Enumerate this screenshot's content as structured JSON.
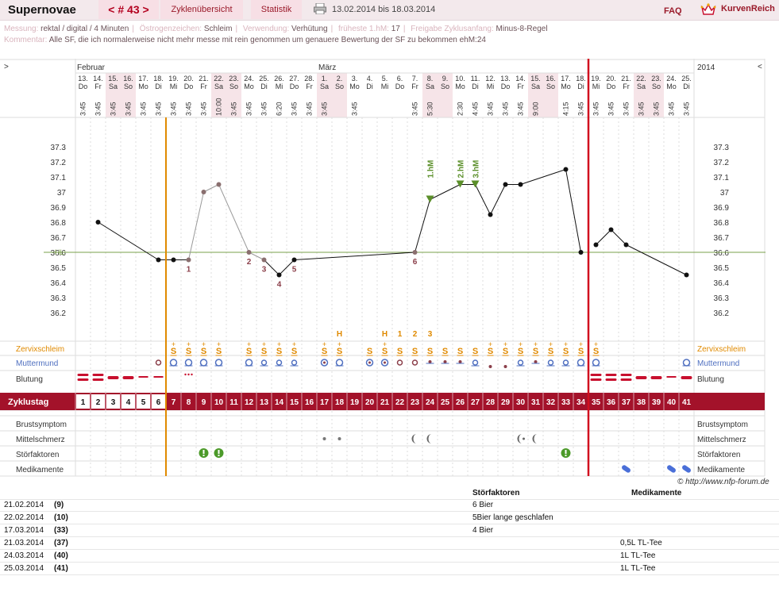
{
  "header": {
    "title": "Supernovae",
    "cycle": "< # 43 >",
    "nav": [
      "Zyklenübersicht",
      "Statistik"
    ],
    "range": "13.02.2014 bis 18.03.2014",
    "faq": "FAQ",
    "brand": "KurvenReich"
  },
  "meta": {
    "messung_label": "Messung:",
    "messung": "rektal / digital / 4 Minuten",
    "oestrogen_label": "Östrogenzeichen:",
    "oestrogen": "Schleim",
    "verwendung_label": "Verwendung:",
    "verwendung": "Verhütung",
    "hm_label": "früheste 1.hM:",
    "hm": "17",
    "freigabe_label": "Freigabe Zyklusanfang:",
    "freigabe": "Minus-8-Regel",
    "kommentar_label": "Kommentar:",
    "kommentar": "Alle SF, die ich normalerweise nicht mehr messe mit rein genommen um genauere Bewertung der SF zu bekommen ehM:24"
  },
  "chart_data": {
    "type": "line",
    "months": {
      "left_arrow": ">",
      "right_arrow": "<",
      "first": "Februar",
      "second": "März",
      "year": "2014"
    },
    "days": [
      {
        "d": "13.",
        "w": "Do",
        "t": "3:45"
      },
      {
        "d": "14.",
        "w": "Fr",
        "t": "3:45"
      },
      {
        "d": "15.",
        "w": "Sa",
        "t": "3:45"
      },
      {
        "d": "16.",
        "w": "So",
        "t": "3:45"
      },
      {
        "d": "17.",
        "w": "Mo",
        "t": "3:45"
      },
      {
        "d": "18.",
        "w": "Di",
        "t": "3:45"
      },
      {
        "d": "19.",
        "w": "Mi",
        "t": "3:45"
      },
      {
        "d": "20.",
        "w": "Do",
        "t": "3:45"
      },
      {
        "d": "21.",
        "w": "Fr",
        "t": "3:45"
      },
      {
        "d": "22.",
        "w": "Sa",
        "t": "10:00"
      },
      {
        "d": "23.",
        "w": "So",
        "t": "3:45"
      },
      {
        "d": "24.",
        "w": "Mo",
        "t": "3:45"
      },
      {
        "d": "25.",
        "w": "Di",
        "t": "3:45"
      },
      {
        "d": "26.",
        "w": "Mi",
        "t": "6:20"
      },
      {
        "d": "27.",
        "w": "Do",
        "t": "3:45"
      },
      {
        "d": "28.",
        "w": "Fr",
        "t": "3:45"
      },
      {
        "d": "1.",
        "w": "Sa",
        "t": "3:45"
      },
      {
        "d": "2.",
        "w": "So",
        "t": ""
      },
      {
        "d": "3.",
        "w": "Mo",
        "t": "3:45"
      },
      {
        "d": "4.",
        "w": "Di",
        "t": ""
      },
      {
        "d": "5.",
        "w": "Mi",
        "t": ""
      },
      {
        "d": "6.",
        "w": "Do",
        "t": ""
      },
      {
        "d": "7.",
        "w": "Fr",
        "t": "3:45"
      },
      {
        "d": "8.",
        "w": "Sa",
        "t": "5:30"
      },
      {
        "d": "9.",
        "w": "So",
        "t": ""
      },
      {
        "d": "10.",
        "w": "Mo",
        "t": "2:30"
      },
      {
        "d": "11.",
        "w": "Di",
        "t": "4:45"
      },
      {
        "d": "12.",
        "w": "Mi",
        "t": "3:45"
      },
      {
        "d": "13.",
        "w": "Do",
        "t": "3:45"
      },
      {
        "d": "14.",
        "w": "Fr",
        "t": "3:45"
      },
      {
        "d": "15.",
        "w": "Sa",
        "t": "9:00"
      },
      {
        "d": "16.",
        "w": "So",
        "t": ""
      },
      {
        "d": "17.",
        "w": "Mo",
        "t": "4:15"
      },
      {
        "d": "18.",
        "w": "Di",
        "t": "3:45"
      },
      {
        "d": "19.",
        "w": "Mi",
        "t": "3:45"
      },
      {
        "d": "20.",
        "w": "Do",
        "t": "3:45"
      },
      {
        "d": "21.",
        "w": "Fr",
        "t": "3:45"
      },
      {
        "d": "22.",
        "w": "Sa",
        "t": "3:45"
      },
      {
        "d": "23.",
        "w": "So",
        "t": "3:45"
      },
      {
        "d": "24.",
        "w": "Mo",
        "t": "3:45"
      },
      {
        "d": "25.",
        "w": "Di",
        "t": "3:45"
      }
    ],
    "weekend_days": [
      3,
      4,
      10,
      11,
      17,
      18,
      24,
      25,
      31,
      32,
      38,
      39
    ],
    "y_ticks": [
      "37.3",
      "37.2",
      "37.1",
      "37",
      "36.9",
      "36.8",
      "36.7",
      "36.6",
      "36.5",
      "36.4",
      "36.3",
      "36.2"
    ],
    "ylim": [
      36.1,
      37.4
    ],
    "hl_label": "HL:",
    "hl_value": 36.6,
    "series": [
      {
        "values": [
          {
            "c": 2,
            "y": 36.8
          },
          {
            "c": 6,
            "y": 36.55
          },
          {
            "c": 7,
            "y": 36.55
          },
          {
            "c": 8,
            "y": 36.55,
            "s": "x"
          },
          {
            "c": 9,
            "y": 37.0,
            "s": "x"
          },
          {
            "c": 10,
            "y": 37.05,
            "s": "x"
          },
          {
            "c": 12,
            "y": 36.6,
            "s": "x"
          },
          {
            "c": 13,
            "y": 36.55,
            "s": "x"
          },
          {
            "c": 14,
            "y": 36.45
          },
          {
            "c": 15,
            "y": 36.55
          },
          {
            "c": 23,
            "y": 36.6,
            "s": "x"
          },
          {
            "c": 24,
            "y": 36.95,
            "s": "t"
          },
          {
            "c": 26,
            "y": 37.05,
            "s": "t"
          },
          {
            "c": 27,
            "y": 37.05,
            "s": "t"
          },
          {
            "c": 28,
            "y": 36.85
          },
          {
            "c": 29,
            "y": 37.05
          },
          {
            "c": 30,
            "y": 37.05
          },
          {
            "c": 33,
            "y": 37.15
          },
          {
            "c": 34,
            "y": 36.6
          }
        ]
      },
      {
        "values": [
          {
            "c": 35,
            "y": 36.65
          },
          {
            "c": 36,
            "y": 36.75
          },
          {
            "c": 37,
            "y": 36.65
          },
          {
            "c": 41,
            "y": 36.45
          }
        ]
      }
    ],
    "low_labels": [
      {
        "c": 8,
        "y": 36.55,
        "text": "1"
      },
      {
        "c": 12,
        "y": 36.6,
        "text": "2"
      },
      {
        "c": 13,
        "y": 36.55,
        "text": "3"
      },
      {
        "c": 14,
        "y": 36.45,
        "text": "4"
      },
      {
        "c": 15,
        "y": 36.55,
        "text": "5"
      },
      {
        "c": 23,
        "y": 36.6,
        "text": "6"
      }
    ],
    "hm_labels": [
      {
        "c": 24,
        "text": "1.hM"
      },
      {
        "c": 26,
        "text": "2.hM"
      },
      {
        "c": 27,
        "text": "3.hM"
      }
    ],
    "orange_line_after": 6,
    "red_line_after": 34,
    "peak_marks": [
      {
        "c": 18,
        "text": "H"
      },
      {
        "c": 21,
        "text": "H"
      },
      {
        "c": 22,
        "text": "1"
      },
      {
        "c": 23,
        "text": "2"
      },
      {
        "c": 24,
        "text": "3"
      }
    ],
    "schleim": [
      {
        "c": 7,
        "v": "S+"
      },
      {
        "c": 8,
        "v": "S+"
      },
      {
        "c": 9,
        "v": "S+"
      },
      {
        "c": 10,
        "v": "S+"
      },
      {
        "c": 12,
        "v": "S+"
      },
      {
        "c": 13,
        "v": "S+"
      },
      {
        "c": 14,
        "v": "S+"
      },
      {
        "c": 15,
        "v": "S+"
      },
      {
        "c": 17,
        "v": "S+"
      },
      {
        "c": 18,
        "v": "S+"
      },
      {
        "c": 20,
        "v": "S"
      },
      {
        "c": 21,
        "v": "S+"
      },
      {
        "c": 22,
        "v": "S"
      },
      {
        "c": 23,
        "v": "S"
      },
      {
        "c": 24,
        "v": "S"
      },
      {
        "c": 25,
        "v": "S"
      },
      {
        "c": 26,
        "v": "S"
      },
      {
        "c": 27,
        "v": "S"
      },
      {
        "c": 28,
        "v": "S+"
      },
      {
        "c": 29,
        "v": "S+"
      },
      {
        "c": 30,
        "v": "S+"
      },
      {
        "c": 31,
        "v": "S+"
      },
      {
        "c": 32,
        "v": "S+"
      },
      {
        "c": 33,
        "v": "S+"
      },
      {
        "c": 34,
        "v": "S+"
      },
      {
        "c": 35,
        "v": "S+"
      }
    ],
    "muttermund": [
      {
        "c": 6,
        "k": "o"
      },
      {
        "c": 7,
        "k": "oh"
      },
      {
        "c": 8,
        "k": "oh"
      },
      {
        "c": 9,
        "k": "oh"
      },
      {
        "c": 10,
        "k": "oh"
      },
      {
        "c": 12,
        "k": "oh"
      },
      {
        "c": 13,
        "k": "ob"
      },
      {
        "c": 14,
        "k": "ob"
      },
      {
        "c": 15,
        "k": "ub"
      },
      {
        "c": 17,
        "k": "og"
      },
      {
        "c": 18,
        "k": "oh"
      },
      {
        "c": 20,
        "k": "og"
      },
      {
        "c": 21,
        "k": "og"
      },
      {
        "c": 22,
        "k": "o"
      },
      {
        "c": 23,
        "k": "o"
      },
      {
        "c": 24,
        "k": "d"
      },
      {
        "c": 25,
        "k": "d"
      },
      {
        "c": 26,
        "k": "d"
      },
      {
        "c": 27,
        "k": "ub"
      },
      {
        "c": 28,
        "k": "dl"
      },
      {
        "c": 29,
        "k": "dl"
      },
      {
        "c": 30,
        "k": "ub"
      },
      {
        "c": 31,
        "k": "d"
      },
      {
        "c": 32,
        "k": "ub"
      },
      {
        "c": 33,
        "k": "ub"
      },
      {
        "c": 34,
        "k": "oh"
      },
      {
        "c": 35,
        "k": "oh"
      },
      {
        "c": 41,
        "k": "oh"
      }
    ],
    "blutung": [
      {
        "c": 1,
        "k": "h"
      },
      {
        "c": 2,
        "k": "h"
      },
      {
        "c": 3,
        "k": "m"
      },
      {
        "c": 4,
        "k": "m"
      },
      {
        "c": 5,
        "k": "l"
      },
      {
        "c": 6,
        "k": "l"
      },
      {
        "c": 8,
        "k": "s"
      },
      {
        "c": 35,
        "k": "h"
      },
      {
        "c": 36,
        "k": "h"
      },
      {
        "c": 37,
        "k": "h"
      },
      {
        "c": 38,
        "k": "m"
      },
      {
        "c": 39,
        "k": "m"
      },
      {
        "c": 40,
        "k": "l"
      },
      {
        "c": 41,
        "k": "m"
      }
    ],
    "row_labels": {
      "schleim": "Zervixschleim",
      "mm": "Muttermund",
      "blut": "Blutung",
      "zyklus": "Zyklustag",
      "brust": "Brustsymptom",
      "mittel": "Mittelschmerz",
      "stoer": "Störfaktoren",
      "med": "Medikamente"
    },
    "zyklustage": [
      "1",
      "2",
      "3",
      "4",
      "5",
      "6",
      "7",
      "8",
      "9",
      "10",
      "11",
      "12",
      "13",
      "14",
      "15",
      "16",
      "17",
      "18",
      "19",
      "20",
      "21",
      "22",
      "23",
      "24",
      "25",
      "26",
      "27",
      "28",
      "29",
      "30",
      "31",
      "32",
      "33",
      "34",
      "35",
      "36",
      "37",
      "38",
      "39",
      "40",
      "41"
    ],
    "mittelschmerz": [
      {
        "c": 17,
        "k": "dot"
      },
      {
        "c": 18,
        "k": "dot"
      },
      {
        "c": 23,
        "k": "moon"
      },
      {
        "c": 24,
        "k": "moon"
      },
      {
        "c": 30,
        "k": "moondot"
      },
      {
        "c": 31,
        "k": "moon"
      }
    ],
    "stoerfaktoren": [
      9,
      10,
      33
    ],
    "medikamente": [
      37,
      40,
      41
    ]
  },
  "footer": {
    "source": "© http://www.nfp-forum.de",
    "hdr_stoer": "Störfaktoren",
    "hdr_med": "Medikamente",
    "rows": [
      {
        "date": "21.02.2014",
        "day": "(9)",
        "stoer": "6 Bier",
        "med": ""
      },
      {
        "date": "22.02.2014",
        "day": "(10)",
        "stoer": "5Bier lange geschlafen",
        "med": ""
      },
      {
        "date": "17.03.2014",
        "day": "(33)",
        "stoer": "4 Bier",
        "med": ""
      },
      {
        "date": "21.03.2014",
        "day": "(37)",
        "stoer": "",
        "med": "0,5L TL-Tee"
      },
      {
        "date": "24.03.2014",
        "day": "(40)",
        "stoer": "",
        "med": "1L TL-Tee"
      },
      {
        "date": "25.03.2014",
        "day": "(41)",
        "stoer": "",
        "med": "1L TL-Tee"
      }
    ]
  }
}
